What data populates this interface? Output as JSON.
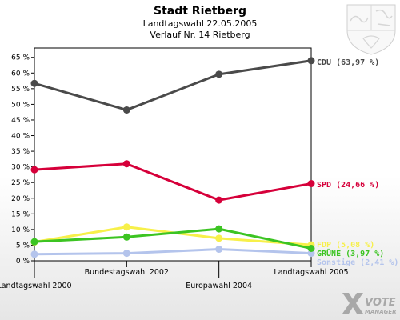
{
  "chart_data": {
    "type": "line",
    "title": "Stadt Rietberg",
    "subtitle_lines": [
      "Landtagswahl 22.05.2005",
      "Verlauf Nr. 14 Rietberg"
    ],
    "categories": [
      "Landtagswahl 2000",
      "Bundestagswahl 2002",
      "Europawahl 2004",
      "Landtagswahl 2005"
    ],
    "y_ticks": [
      "0 %",
      "5 %",
      "10 %",
      "15 %",
      "20 %",
      "25 %",
      "30 %",
      "35 %",
      "40 %",
      "45 %",
      "50 %",
      "55 %",
      "60 %",
      "65 %"
    ],
    "ylim": [
      0,
      68
    ],
    "grid": false,
    "series": [
      {
        "name": "Sonstige",
        "end_label": "Sonstige (2,41 %)",
        "color": "#b4c4ec",
        "values": [
          2.1,
          2.4,
          3.7,
          2.41
        ]
      },
      {
        "name": "FDP",
        "end_label": "FDP (5,08 %)",
        "color": "#f7f04a",
        "values": [
          6.0,
          10.8,
          7.2,
          5.08
        ]
      },
      {
        "name": "GRÜNE",
        "end_label": "GRÜNE (3,97 %)",
        "color": "#3cc422",
        "values": [
          6.1,
          7.6,
          10.2,
          3.97
        ]
      },
      {
        "name": "SPD",
        "end_label": "SPD (24,66 %)",
        "color": "#d6003a",
        "values": [
          29.1,
          31.0,
          19.4,
          24.66
        ]
      },
      {
        "name": "CDU",
        "end_label": "CDU (63,97 %)",
        "color": "#4a4a4a",
        "values": [
          56.7,
          48.2,
          59.6,
          63.97
        ]
      }
    ]
  },
  "branding": {
    "logo_word1": "VOTE",
    "logo_word2": "MANAGER",
    "crest_icon": "nrw-coat-of-arms-icon",
    "logo_icon": "vote-manager-x-icon"
  }
}
